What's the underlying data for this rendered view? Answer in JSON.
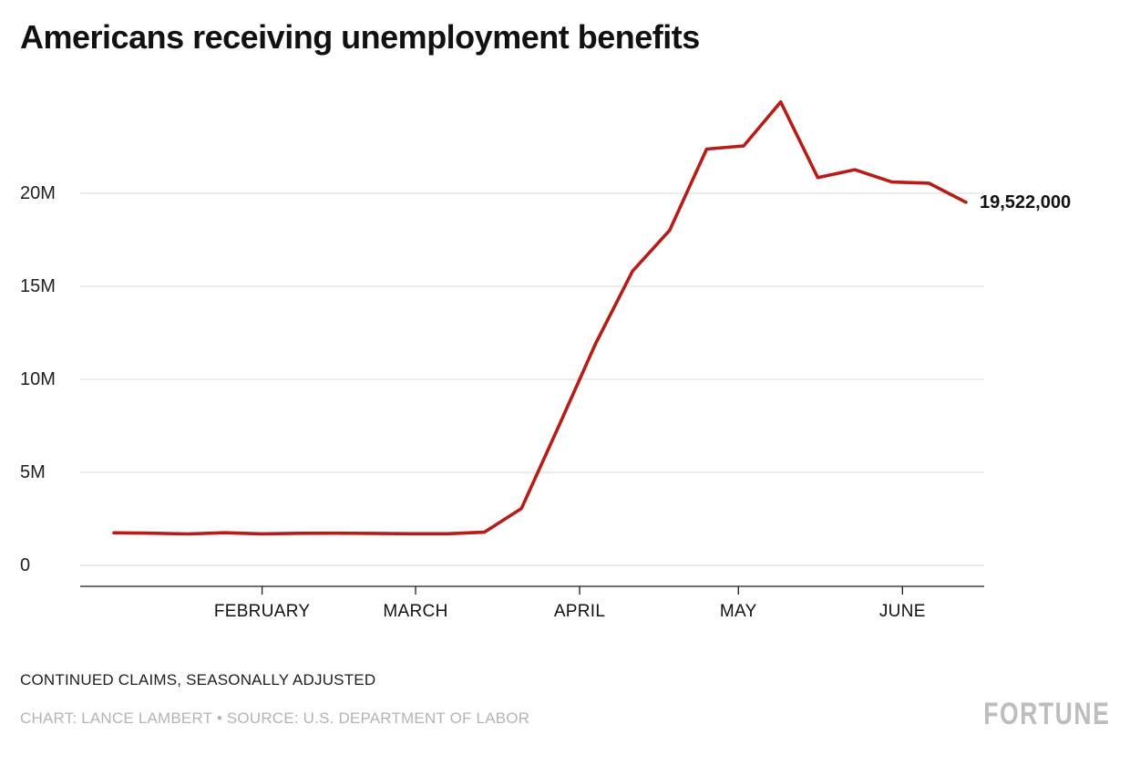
{
  "page": {
    "title": "Americans receiving unemployment benefits",
    "notes_line1": "CONTINUED CLAIMS, SEASONALLY ADJUSTED",
    "notes_line2": "CHART: LANCE LAMBERT • SOURCE: U.S. DEPARTMENT OF LABOR",
    "brand": "FORTUNE"
  },
  "colors": {
    "line": "#b71c16",
    "grid": "#d9d9d9",
    "axis": "#1a1a1a",
    "tick": "#1a1a1a",
    "title": "#111111",
    "muted": "#b4b4b4"
  },
  "chart_data": {
    "type": "line",
    "title": "Americans receiving unemployment benefits",
    "subtitle": "CONTINUED CLAIMS, SEASONALLY ADJUSTED",
    "xlabel": "",
    "ylabel": "",
    "legend": "none",
    "grid": "horizontal",
    "end_label": "19,522,000",
    "ylim": [
      0,
      25500000
    ],
    "x": [
      "2020-01-04",
      "2020-01-11",
      "2020-01-18",
      "2020-01-25",
      "2020-02-01",
      "2020-02-08",
      "2020-02-15",
      "2020-02-22",
      "2020-02-29",
      "2020-03-07",
      "2020-03-14",
      "2020-03-21",
      "2020-03-28",
      "2020-04-04",
      "2020-04-11",
      "2020-04-18",
      "2020-04-25",
      "2020-05-02",
      "2020-05-09",
      "2020-05-16",
      "2020-05-23",
      "2020-05-30",
      "2020-06-06",
      "2020-06-13"
    ],
    "values": [
      1752000,
      1730000,
      1693000,
      1755000,
      1698000,
      1726000,
      1728000,
      1719000,
      1699000,
      1702000,
      1784000,
      3059000,
      7446000,
      11914000,
      15819000,
      18011000,
      22377000,
      22548000,
      24912000,
      20841000,
      21268000,
      20606000,
      20544000,
      19522000
    ],
    "yticks": [
      {
        "value": 0,
        "label": "0"
      },
      {
        "value": 5000000,
        "label": "5M"
      },
      {
        "value": 10000000,
        "label": "10M"
      },
      {
        "value": 15000000,
        "label": "15M"
      },
      {
        "value": 20000000,
        "label": "20M"
      }
    ],
    "xticks": [
      {
        "date": "2020-02-01",
        "label": "FEBRUARY"
      },
      {
        "date": "2020-03-01",
        "label": "MARCH"
      },
      {
        "date": "2020-04-01",
        "label": "APRIL"
      },
      {
        "date": "2020-05-01",
        "label": "MAY"
      },
      {
        "date": "2020-06-01",
        "label": "JUNE"
      }
    ]
  }
}
